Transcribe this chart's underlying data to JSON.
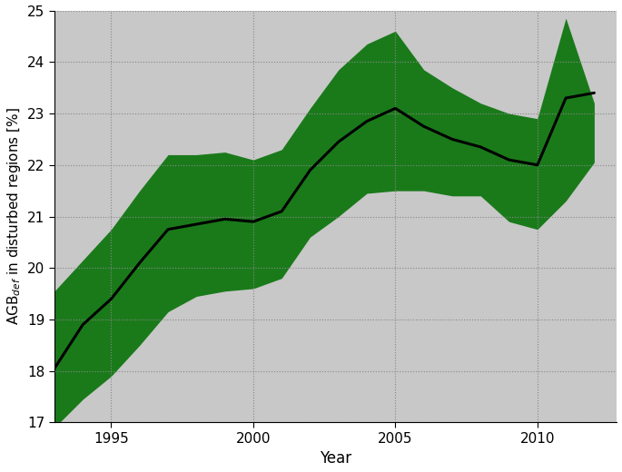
{
  "years": [
    1993,
    1994,
    1995,
    1996,
    1997,
    1998,
    1999,
    2000,
    2001,
    2002,
    2003,
    2004,
    2005,
    2006,
    2007,
    2008,
    2009,
    2010,
    2011,
    2012
  ],
  "mean": [
    18.05,
    18.9,
    19.4,
    20.1,
    20.75,
    20.85,
    20.95,
    20.9,
    21.1,
    21.9,
    22.45,
    22.85,
    23.1,
    22.75,
    22.5,
    22.35,
    22.1,
    22.0,
    23.3,
    23.4
  ],
  "upper": [
    19.55,
    20.15,
    20.75,
    21.5,
    22.2,
    22.2,
    22.25,
    22.1,
    22.3,
    23.1,
    23.85,
    24.35,
    24.6,
    23.85,
    23.5,
    23.2,
    23.0,
    22.9,
    24.85,
    23.2
  ],
  "lower": [
    16.9,
    17.45,
    17.9,
    18.5,
    19.15,
    19.45,
    19.55,
    19.6,
    19.8,
    20.6,
    21.0,
    21.45,
    21.5,
    21.5,
    21.4,
    21.4,
    20.9,
    20.75,
    21.3,
    22.05
  ],
  "line_color": "#000000",
  "fill_color": "#1a7a1a",
  "background_color": "#c8c8c8",
  "ylabel": "AGB$_{def}$ in disturbed regions [%]",
  "xlabel": "Year",
  "ylim": [
    17,
    25
  ],
  "xlim_left": 1993.0,
  "xlim_right": 2012.8,
  "yticks": [
    17,
    18,
    19,
    20,
    21,
    22,
    23,
    24,
    25
  ],
  "xticks": [
    1995,
    2000,
    2005,
    2010
  ],
  "line_width": 2.2,
  "ylabel_fontsize": 11,
  "xlabel_fontsize": 12,
  "tick_labelsize": 11
}
